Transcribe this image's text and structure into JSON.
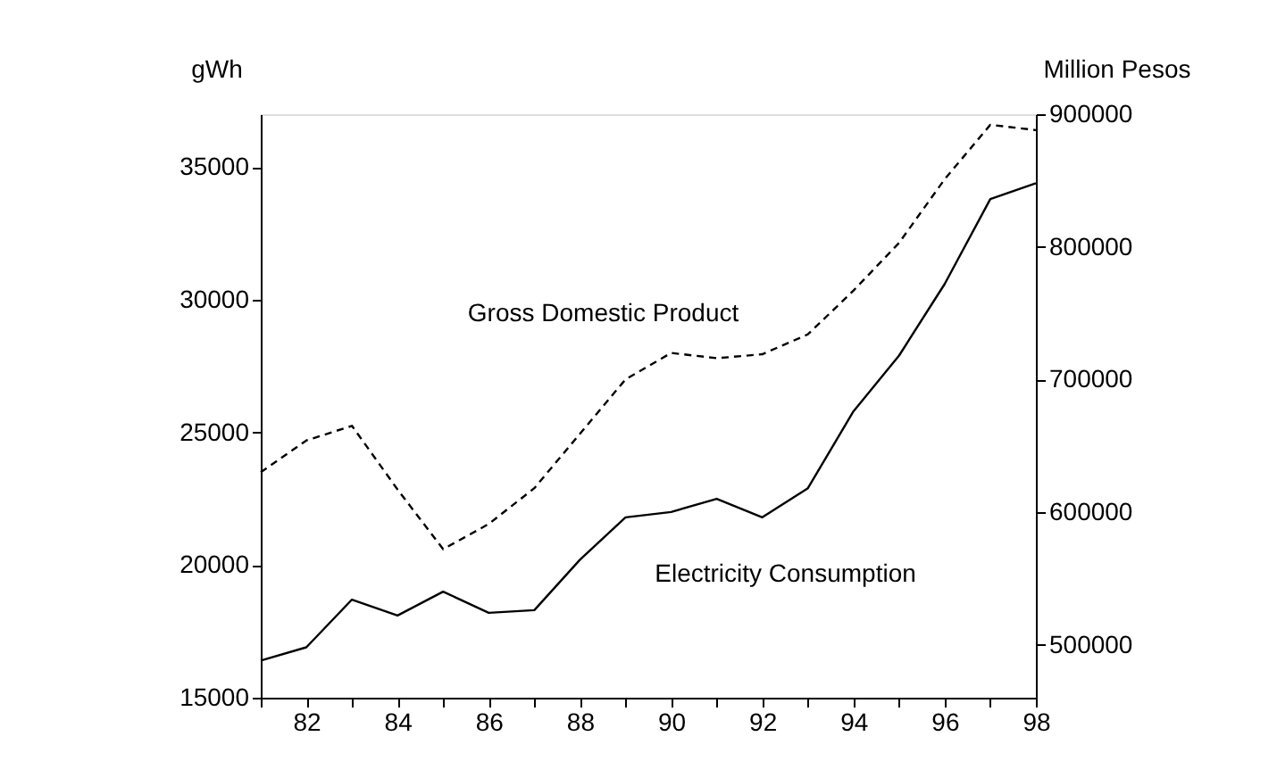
{
  "chart_data": {
    "type": "line",
    "x": [
      81,
      82,
      83,
      84,
      85,
      86,
      87,
      88,
      89,
      90,
      91,
      92,
      93,
      94,
      95,
      96,
      97,
      98
    ],
    "series": [
      {
        "name": "Electricity Consumption",
        "color": "#000000",
        "line_style": "solid",
        "values": [
          16400,
          16900,
          18700,
          18100,
          19000,
          18200,
          18300,
          20200,
          21800,
          22000,
          22500,
          21800,
          22900,
          25800,
          27900,
          30600,
          33800,
          34400
        ]
      },
      {
        "name": "Gross Domestic Product",
        "color": "#000000",
        "line_style": "dashed",
        "axis": "y2",
        "values": [
          630000,
          654000,
          665000,
          617000,
          572000,
          591000,
          618000,
          659000,
          700000,
          720000,
          716000,
          719000,
          734000,
          767000,
          803000,
          851000,
          892000,
          888000
        ]
      }
    ],
    "ylabel": "gWh",
    "y2label": "Million Pesos",
    "xlim": [
      81,
      98
    ],
    "xticks": [
      {
        "value": 81,
        "label": null
      },
      82,
      {
        "value": 83,
        "label": null
      },
      84,
      {
        "value": 85,
        "label": null
      },
      86,
      {
        "value": 87,
        "label": null
      },
      88,
      {
        "value": 89,
        "label": null
      },
      90,
      {
        "value": 91,
        "label": null
      },
      92,
      {
        "value": 93,
        "label": null
      },
      94,
      {
        "value": 95,
        "label": null
      },
      96,
      {
        "value": 97,
        "label": null
      },
      98
    ],
    "ylim": [
      15000,
      37000
    ],
    "yticks": [
      15000,
      20000,
      25000,
      30000,
      35000
    ],
    "y2lim": [
      460000,
      900000
    ],
    "y2ticks": [
      500000,
      600000,
      700000,
      800000,
      900000
    ],
    "grid": false,
    "marker": "none"
  }
}
